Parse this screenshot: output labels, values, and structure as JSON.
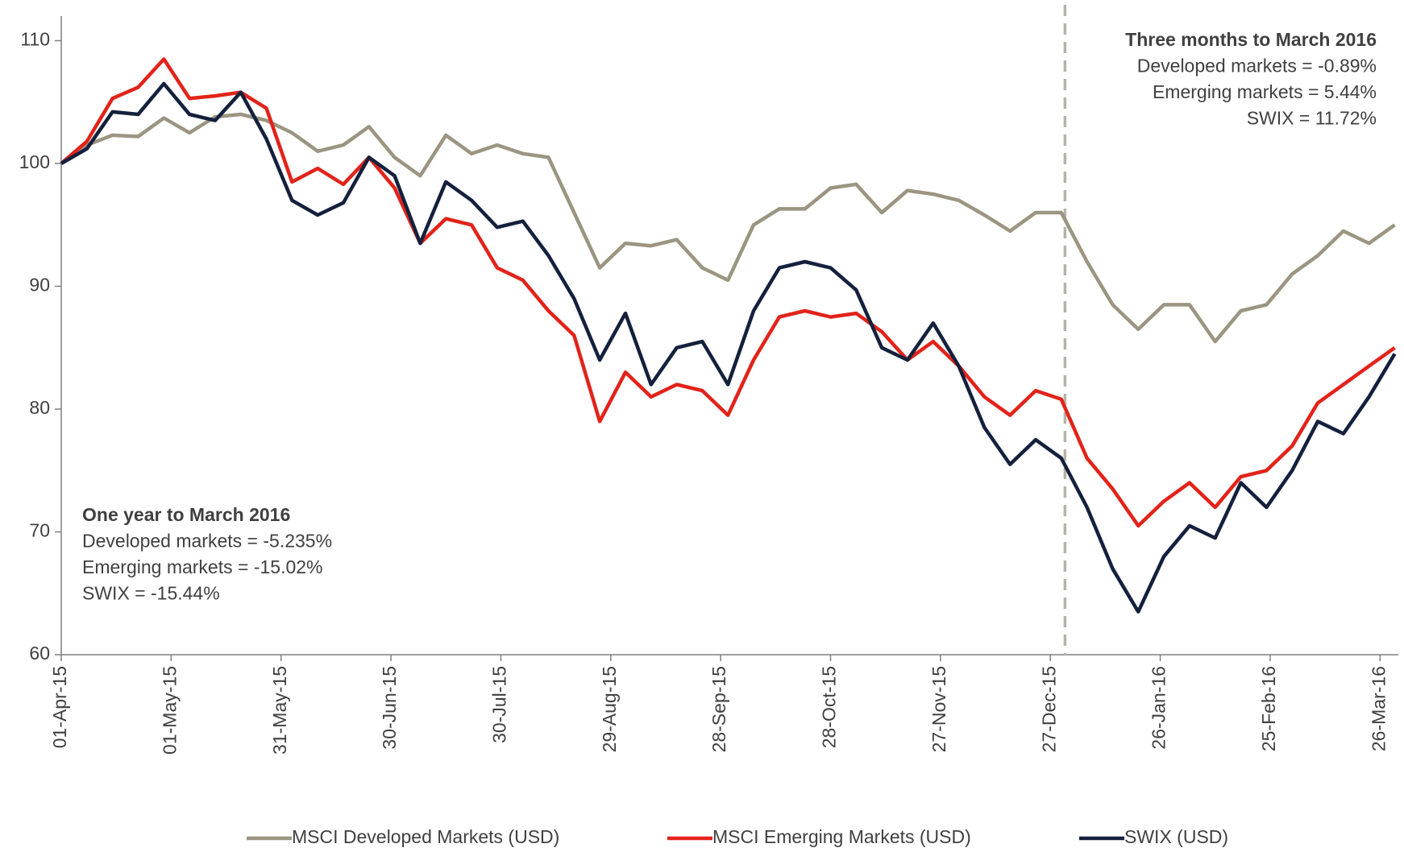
{
  "chart_data": {
    "type": "line",
    "x": [
      "2015-04-01",
      "2015-04-08",
      "2015-04-15",
      "2015-04-22",
      "2015-04-29",
      "2015-05-06",
      "2015-05-13",
      "2015-05-20",
      "2015-05-27",
      "2015-06-03",
      "2015-06-10",
      "2015-06-17",
      "2015-06-24",
      "2015-07-01",
      "2015-07-08",
      "2015-07-15",
      "2015-07-22",
      "2015-07-29",
      "2015-08-05",
      "2015-08-12",
      "2015-08-19",
      "2015-08-26",
      "2015-09-02",
      "2015-09-09",
      "2015-09-16",
      "2015-09-23",
      "2015-09-30",
      "2015-10-07",
      "2015-10-14",
      "2015-10-21",
      "2015-10-28",
      "2015-11-04",
      "2015-11-11",
      "2015-11-18",
      "2015-11-25",
      "2015-12-02",
      "2015-12-09",
      "2015-12-16",
      "2015-12-23",
      "2015-12-30",
      "2016-01-06",
      "2016-01-13",
      "2016-01-20",
      "2016-01-27",
      "2016-02-03",
      "2016-02-10",
      "2016-02-17",
      "2016-02-24",
      "2016-03-02",
      "2016-03-09",
      "2016-03-16",
      "2016-03-23",
      "2016-03-30"
    ],
    "series": [
      {
        "name": "MSCI Developed Markets (USD)",
        "color": "#9b9581",
        "values": [
          100,
          101.5,
          102.3,
          102.2,
          103.7,
          102.5,
          103.8,
          104,
          103.5,
          102.5,
          101,
          101.5,
          103,
          100.5,
          99,
          102.3,
          100.8,
          101.5,
          100.8,
          100.5,
          96,
          91.5,
          93.5,
          93.3,
          93.8,
          91.5,
          90.5,
          95,
          96.3,
          96.3,
          98,
          98.3,
          96,
          97.8,
          97.5,
          97,
          95.8,
          94.5,
          96,
          96,
          92,
          88.5,
          86.5,
          88.5,
          88.5,
          85.5,
          88,
          88.5,
          91,
          92.5,
          94.5,
          93.5,
          95
        ]
      },
      {
        "name": "MSCI Emerging Markets (USD)",
        "color": "#e2231a",
        "values": [
          100,
          101.8,
          105.3,
          106.2,
          108.5,
          105.3,
          105.5,
          105.8,
          104.5,
          98.5,
          99.6,
          98.3,
          100.5,
          98,
          93.5,
          95.5,
          95,
          91.5,
          90.5,
          88,
          86,
          79,
          83,
          81,
          82,
          81.5,
          79.5,
          84,
          87.5,
          88,
          87.5,
          87.8,
          86.3,
          84,
          85.5,
          83.5,
          81,
          79.5,
          81.5,
          80.8,
          76,
          73.5,
          70.5,
          72.5,
          74,
          72,
          74.5,
          75,
          77,
          80.5,
          82,
          83.5,
          85
        ]
      },
      {
        "name": "SWIX (USD)",
        "color": "#14213d",
        "values": [
          100,
          101.2,
          104.2,
          104,
          106.5,
          104,
          103.5,
          105.8,
          102,
          97,
          95.8,
          96.8,
          100.5,
          99,
          93.5,
          98.5,
          97,
          94.8,
          95.3,
          92.5,
          89,
          84,
          87.8,
          82,
          85,
          85.5,
          82,
          88,
          91.5,
          92,
          91.5,
          89.7,
          85,
          84,
          87,
          83.5,
          78.5,
          75.5,
          77.5,
          76,
          72,
          67,
          63.5,
          68,
          70.5,
          69.5,
          74,
          72,
          75,
          79,
          78,
          81,
          84.5
        ]
      }
    ],
    "xlim": [
      "2015-04-01",
      "2016-03-31"
    ],
    "xticks": [
      {
        "value": "2015-04-01",
        "label": "01-Apr-15"
      },
      {
        "value": "2015-05-01",
        "label": "01-May-15"
      },
      {
        "value": "2015-05-31",
        "label": "31-May-15"
      },
      {
        "value": "2015-06-30",
        "label": "30-Jun-15"
      },
      {
        "value": "2015-07-30",
        "label": "30-Jul-15"
      },
      {
        "value": "2015-08-29",
        "label": "29-Aug-15"
      },
      {
        "value": "2015-09-28",
        "label": "28-Sep-15"
      },
      {
        "value": "2015-10-28",
        "label": "28-Oct-15"
      },
      {
        "value": "2015-11-27",
        "label": "27-Nov-15"
      },
      {
        "value": "2015-12-27",
        "label": "27-Dec-15"
      },
      {
        "value": "2016-01-26",
        "label": "26-Jan-16"
      },
      {
        "value": "2016-02-25",
        "label": "25-Feb-16"
      },
      {
        "value": "2016-03-26",
        "label": "26-Mar-16"
      }
    ],
    "ylim": [
      60,
      112
    ],
    "yticks": [
      60,
      70,
      80,
      90,
      100,
      110
    ],
    "grid": false,
    "vline": {
      "x": "2015-12-31",
      "color": "#b5b3a5"
    },
    "annotations": [
      {
        "lines": [
          "Three months to March 2016",
          "Developed markets =  -0.89%",
          "Emerging markets =  5.44%",
          "SWIX = 11.72%"
        ]
      },
      {
        "lines": [
          "One year to March 2016",
          "Developed markets = -5.235%",
          "Emerging markets = -15.02%",
          "SWIX = -15.44%"
        ]
      }
    ],
    "legend": "bottom"
  }
}
